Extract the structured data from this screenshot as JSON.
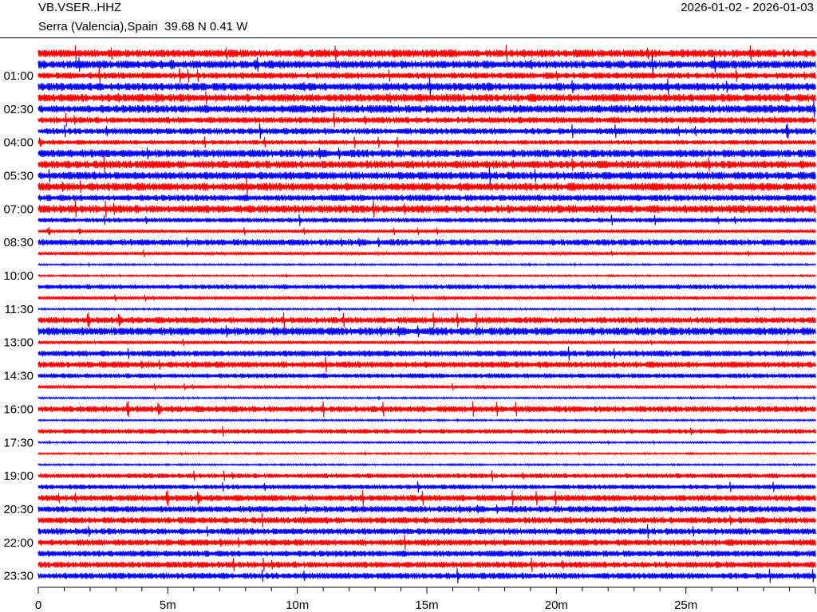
{
  "header": {
    "station": "VB.VSER..HHZ",
    "location": "Serra (Valencia),Spain  39.68 N 0.41 W",
    "date_range": "2026-01-02 - 2026-01-03"
  },
  "chart_data": {
    "type": "line",
    "title": "",
    "xlabel": "",
    "ylabel": "",
    "xlim": [
      0,
      30
    ],
    "x_ticks": [
      "0",
      "5m",
      "10m",
      "15m",
      "20m",
      "25m"
    ],
    "x_tick_values": [
      0,
      5,
      10,
      15,
      20,
      25
    ],
    "y_ticks": [
      "01:00",
      "02:30",
      "04:00",
      "05:30",
      "07:00",
      "08:30",
      "10:00",
      "11:30",
      "13:00",
      "14:30",
      "16:00",
      "17:30",
      "19:00",
      "20:30",
      "22:00",
      "23:30"
    ],
    "trace_count": 48,
    "colors": [
      "#ff0000",
      "#0000ff"
    ],
    "amplitudes": [
      5,
      5,
      4,
      5,
      5,
      5,
      4,
      4,
      3,
      5,
      5,
      5,
      5,
      4,
      5,
      3,
      2,
      4,
      2,
      1,
      1,
      3,
      2,
      1,
      4,
      5,
      2,
      4,
      4,
      3,
      2,
      1,
      4,
      1,
      3,
      1,
      1,
      1,
      3,
      3,
      4,
      4,
      4,
      4,
      4,
      4,
      4,
      4
    ]
  }
}
